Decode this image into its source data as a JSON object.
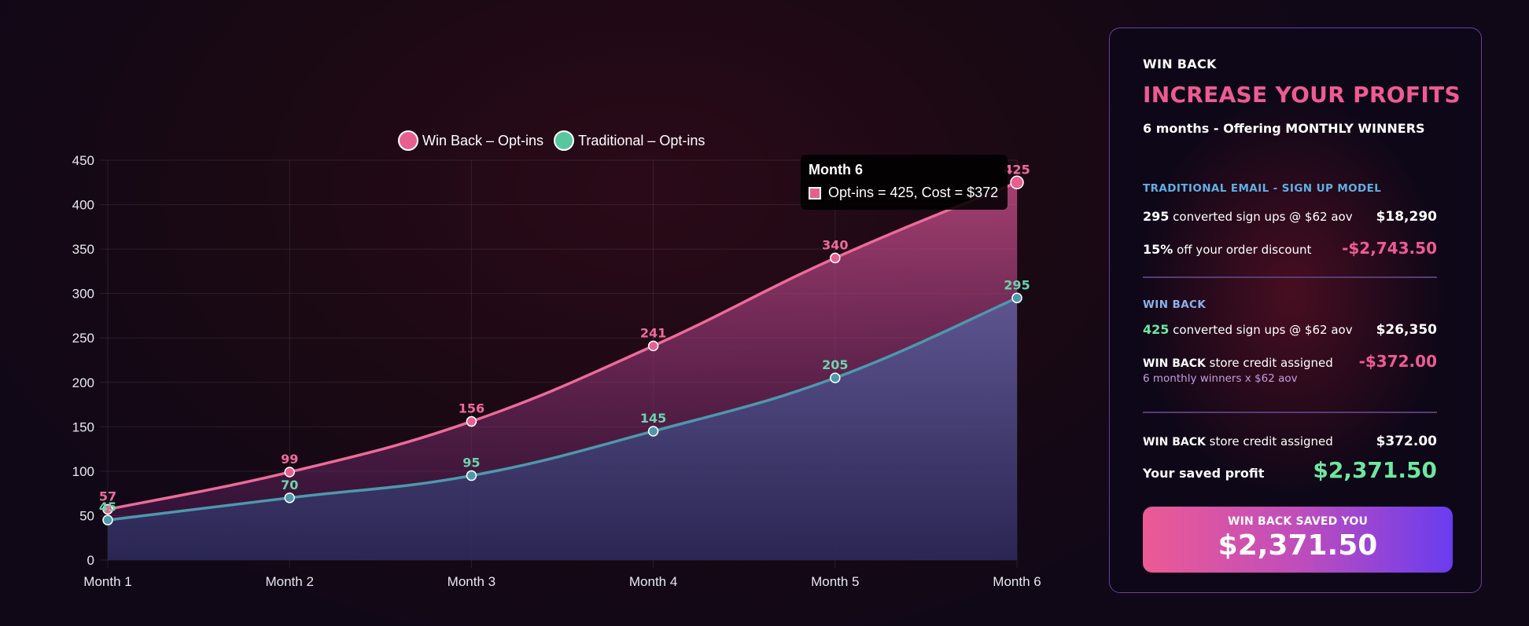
{
  "chart_data": {
    "type": "line",
    "categories": [
      "Month 1",
      "Month 2",
      "Month 3",
      "Month 4",
      "Month 5",
      "Month 6"
    ],
    "series": [
      {
        "name": "Win Back – Opt-ins",
        "values": [
          57,
          99,
          156,
          241,
          340,
          425
        ],
        "color": "#e85f8f"
      },
      {
        "name": "Traditional – Opt-ins",
        "values": [
          45,
          70,
          95,
          145,
          205,
          295
        ],
        "color": "#58c7a0"
      }
    ],
    "ylim": [
      0,
      450
    ],
    "yticks": [
      0,
      50,
      100,
      150,
      200,
      250,
      300,
      350,
      400,
      450
    ],
    "grid": true,
    "legend_position": "top-center",
    "area_fill": true,
    "tooltip": {
      "title": "Month 6",
      "text": "Opt-ins = 425, Cost = $372"
    }
  },
  "panel": {
    "kicker": "WIN BACK",
    "title": "INCREASE YOUR PROFITS",
    "subtitle": "6 months - Offering MONTHLY  WINNERS",
    "traditional": {
      "heading": "TRADITIONAL EMAIL - SIGN UP MODEL",
      "heading_color": "#5eb0e6",
      "row1": {
        "count": "295",
        "text": " converted sign ups  @ $62 aov",
        "value": "$18,290"
      },
      "row2": {
        "count": "15%",
        "text": " off your order discount",
        "value": "-$2,743.50"
      }
    },
    "winback": {
      "heading": "WIN BACK",
      "heading_color": "#8bb0ee",
      "row1": {
        "count": "425",
        "text": " converted sign ups  @ $62 aov",
        "value": "$26,350"
      },
      "row2": {
        "label": "WIN BACK",
        "text": " store credit assigned",
        "value": "-$372.00"
      },
      "note": "6 monthly winners x $62 aov"
    },
    "summary": {
      "row1": {
        "label": "WIN BACK",
        "text": " store credit assigned",
        "value": "$372.00"
      },
      "row2": {
        "text": "Your saved profit",
        "value": "$2,371.50"
      }
    },
    "cta": {
      "label": "WIN BACK SAVED YOU",
      "value": "$2,371.50"
    }
  }
}
